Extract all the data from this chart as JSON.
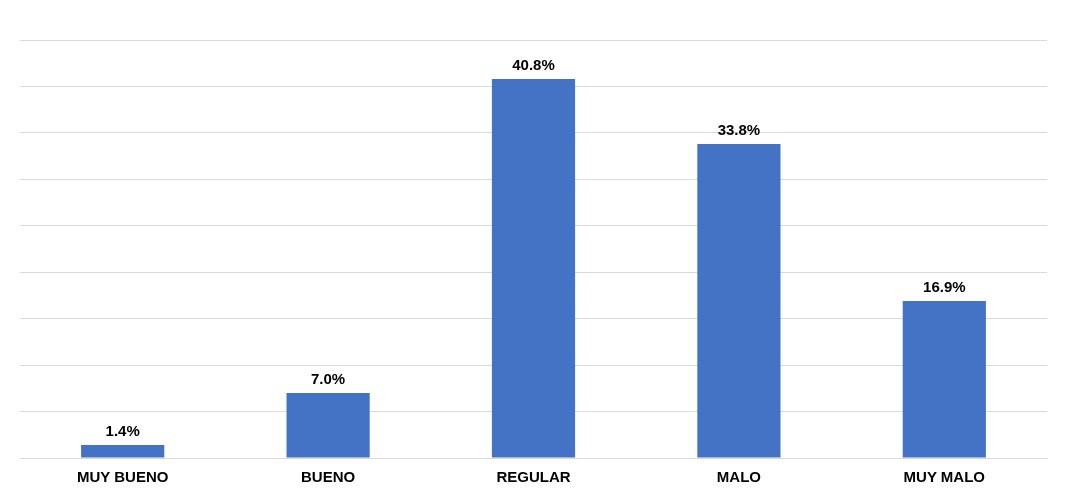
{
  "chart_data": {
    "type": "bar",
    "categories": [
      "MUY BUENO",
      "BUENO",
      "REGULAR",
      "MALO",
      "MUY MALO"
    ],
    "values": [
      1.4,
      7.0,
      40.8,
      33.8,
      16.9
    ],
    "value_labels": [
      "1.4%",
      "7.0%",
      "40.8%",
      "33.8%",
      "16.9%"
    ],
    "color": "#4472c4",
    "ylim": [
      0,
      45
    ],
    "yticks": [
      0,
      5,
      10,
      15,
      20,
      25,
      30,
      35,
      40,
      45
    ],
    "grid": "y",
    "tick_labels": "x",
    "legend": false
  }
}
